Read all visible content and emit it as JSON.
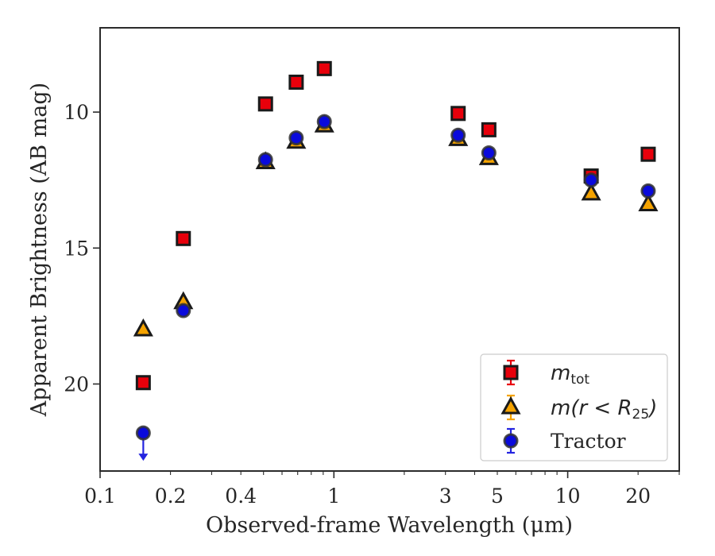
{
  "chart_data": {
    "type": "scatter",
    "xlabel": "Observed-frame Wavelength (μm)",
    "ylabel": "Apparent Brightness (AB mag)",
    "xscale": "log",
    "xlim": [
      0.1,
      30
    ],
    "ylim": [
      23.2,
      6.9
    ],
    "y_inverted": true,
    "grid": false,
    "legend_position": "lower-right",
    "x_ticks": [
      {
        "value": 0.1,
        "label": "0.1"
      },
      {
        "value": 0.2,
        "label": "0.2"
      },
      {
        "value": 0.4,
        "label": "0.4"
      },
      {
        "value": 1,
        "label": "1"
      },
      {
        "value": 3,
        "label": "3"
      },
      {
        "value": 5,
        "label": "5"
      },
      {
        "value": 10,
        "label": "10"
      },
      {
        "value": 20,
        "label": "20"
      }
    ],
    "y_ticks": [
      {
        "value": 10,
        "label": "10"
      },
      {
        "value": 15,
        "label": "15"
      },
      {
        "value": 20,
        "label": "20"
      }
    ],
    "series": [
      {
        "name": "m_tot",
        "legend_main": "m",
        "legend_sub": "tot",
        "marker": "square",
        "fill": "#e8000b",
        "edge": "#1a1a1a",
        "x": [
          0.153,
          0.227,
          0.51,
          0.69,
          0.91,
          3.4,
          4.6,
          12.6,
          22.1
        ],
        "y": [
          19.95,
          14.65,
          9.7,
          8.9,
          8.4,
          10.05,
          10.65,
          12.35,
          11.55
        ]
      },
      {
        "name": "m(r < R25)",
        "legend_main": "m(r < R",
        "legend_sub": "25",
        "legend_tail": ")",
        "marker": "triangle",
        "fill": "#f5a300",
        "edge": "#1a1a1a",
        "x": [
          0.153,
          0.227,
          0.51,
          0.69,
          0.91,
          3.4,
          4.6,
          12.6,
          22.1
        ],
        "y": [
          18.0,
          17.0,
          11.85,
          11.1,
          10.5,
          11.0,
          11.7,
          13.0,
          13.4
        ]
      },
      {
        "name": "Tractor",
        "marker": "circle",
        "fill": "#0a0adc",
        "edge": "#333333",
        "x": [
          0.153,
          0.227,
          0.51,
          0.69,
          0.91,
          3.4,
          4.6,
          12.6,
          22.1
        ],
        "y": [
          21.8,
          17.3,
          11.75,
          10.95,
          10.35,
          10.85,
          11.5,
          12.5,
          12.9
        ],
        "upper_limit_index": 0
      }
    ]
  }
}
